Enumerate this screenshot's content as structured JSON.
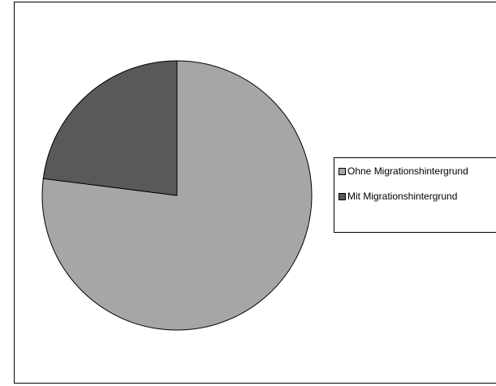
{
  "chart_data": {
    "type": "pie",
    "slices": [
      {
        "label": "Ohne Migrationshintergrund",
        "value": 77,
        "color": "#a6a6a6"
      },
      {
        "label": "Mit Migrationshintergrund",
        "value": 23,
        "color": "#595959"
      }
    ],
    "legend_position": "right"
  }
}
